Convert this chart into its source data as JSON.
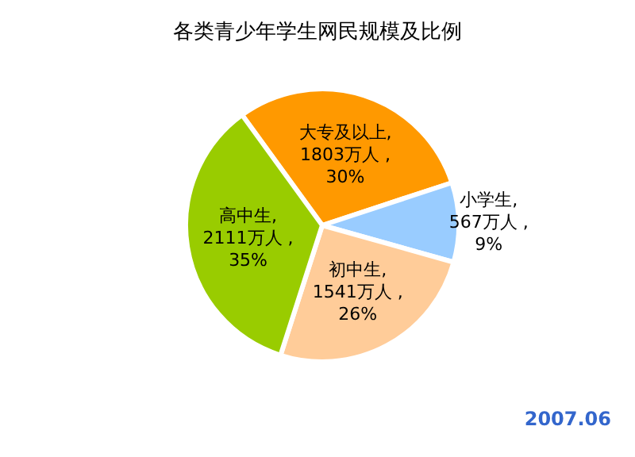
{
  "chart_data": {
    "type": "pie",
    "title": "各类青少年学生网民规模及比例",
    "categories": [
      "大专及以上",
      "小学生",
      "初中生",
      "高中生"
    ],
    "values": [
      1803,
      567,
      1541,
      2111
    ],
    "value_labels": [
      ",\n1803万人 ,\n30%",
      ",\n567万人 ,\n9%",
      ",\n1541万人 ,\n26%",
      ",\n2111万人 ,\n35%"
    ],
    "colors": [
      "#ff9900",
      "#99ccff",
      "#ffcc99",
      "#99cc00"
    ],
    "annotations": [
      "2007.06"
    ]
  }
}
